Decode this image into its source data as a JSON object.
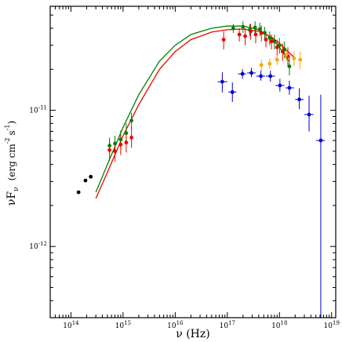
{
  "chart_data": {
    "type": "scatter",
    "title": "",
    "xlabel": "ν (Hz)",
    "ylabel": "νF",
    "ylabel_sub": "ν",
    "ylabel_units": "(erg cm",
    "ylabel_units_exp1": "-2",
    "ylabel_units_s": "s",
    "ylabel_units_exp2": "-1",
    "ylabel_units_close": ")",
    "x_scale": "log",
    "y_scale": "log",
    "xlim": [
      40000000000000.0,
      1.2e+19
    ],
    "ylim": [
      3e-13,
      5.8e-11
    ],
    "grid": false,
    "legend": "none",
    "x_ticks": [
      {
        "value": 100000000000000.0,
        "base": "10",
        "exp": "14"
      },
      {
        "value": 1000000000000000.0,
        "base": "10",
        "exp": "15"
      },
      {
        "value": 1e+16,
        "base": "10",
        "exp": "16"
      },
      {
        "value": 1e+17,
        "base": "10",
        "exp": "17"
      },
      {
        "value": 1e+18,
        "base": "10",
        "exp": "18"
      },
      {
        "value": 1e+19,
        "base": "10",
        "exp": "19"
      }
    ],
    "y_ticks": [
      {
        "value": 1e-12,
        "base": "10",
        "exp": "-12"
      },
      {
        "value": 1e-11,
        "base": "10",
        "exp": "-11"
      }
    ],
    "series": [
      {
        "color": "#000000",
        "kind": "points",
        "points": [
          {
            "x": 140000000000000.0,
            "y": 2.5e-12
          },
          {
            "x": 190000000000000.0,
            "y": 3.05e-12
          },
          {
            "x": 240000000000000.0,
            "y": 3.25e-12
          }
        ]
      },
      {
        "color": "#008000",
        "kind": "points",
        "points": [
          {
            "x": 550000000000000.0,
            "y": 5.5e-12,
            "ylo": 4.8e-12,
            "yhi": 6.3e-12
          },
          {
            "x": 700000000000000.0,
            "y": 5.7e-12,
            "ylo": 5e-12,
            "yhi": 6.5e-12
          },
          {
            "x": 900000000000000.0,
            "y": 6.1e-12,
            "ylo": 5.2e-12,
            "yhi": 7.1e-12
          },
          {
            "x": 1150000000000000.0,
            "y": 6.8e-12,
            "ylo": 5.8e-12,
            "yhi": 8e-12
          },
          {
            "x": 1450000000000000.0,
            "y": 8.4e-12,
            "ylo": 7.2e-12,
            "yhi": 9.6e-12
          },
          {
            "x": 1.3e+17,
            "y": 4e-11,
            "ylo": 3.7e-11,
            "yhi": 4.3e-11
          },
          {
            "x": 2e+17,
            "y": 4.1e-11,
            "ylo": 3.7e-11,
            "yhi": 4.5e-11
          },
          {
            "x": 2.7e+17,
            "y": 3.9e-11,
            "ylo": 3.5e-11,
            "yhi": 4.3e-11
          },
          {
            "x": 3.4e+17,
            "y": 4.05e-11,
            "ylo": 3.6e-11,
            "yhi": 4.5e-11
          },
          {
            "x": 4.2e+17,
            "y": 3.95e-11,
            "ylo": 3.5e-11,
            "yhi": 4.4e-11
          },
          {
            "x": 5.2e+17,
            "y": 3.7e-11,
            "ylo": 3.3e-11,
            "yhi": 4.1e-11
          },
          {
            "x": 6.5e+17,
            "y": 3.4e-11,
            "ylo": 3e-11,
            "yhi": 3.8e-11
          },
          {
            "x": 8e+17,
            "y": 3.2e-11,
            "ylo": 2.8e-11,
            "yhi": 3.6e-11
          },
          {
            "x": 1e+18,
            "y": 3e-11,
            "ylo": 2.6e-11,
            "yhi": 3.4e-11
          },
          {
            "x": 1.25e+18,
            "y": 2.8e-11,
            "ylo": 2.4e-11,
            "yhi": 3.2e-11
          },
          {
            "x": 1.55e+18,
            "y": 2.1e-11,
            "ylo": 1.8e-11,
            "yhi": 2.5e-11
          }
        ]
      },
      {
        "color": "#ee0000",
        "kind": "points",
        "points": [
          {
            "x": 550000000000000.0,
            "y": 5.1e-12,
            "ylo": 4.3e-12,
            "yhi": 6e-12
          },
          {
            "x": 700000000000000.0,
            "y": 5e-12,
            "ylo": 4.2e-12,
            "yhi": 5.9e-12
          },
          {
            "x": 900000000000000.0,
            "y": 5.6e-12,
            "ylo": 4.7e-12,
            "yhi": 6.6e-12
          },
          {
            "x": 1150000000000000.0,
            "y": 5.8e-12,
            "ylo": 4.9e-12,
            "yhi": 6.8e-12
          },
          {
            "x": 1450000000000000.0,
            "y": 6.3e-12,
            "ylo": 5.3e-12,
            "yhi": 7.5e-12
          },
          {
            "x": 8.5e+16,
            "y": 3.3e-11,
            "ylo": 2.8e-11,
            "yhi": 3.8e-11
          },
          {
            "x": 1.7e+17,
            "y": 3.6e-11,
            "ylo": 3.2e-11,
            "yhi": 4e-11
          },
          {
            "x": 2.2e+17,
            "y": 3.5e-11,
            "ylo": 3e-11,
            "yhi": 4e-11
          },
          {
            "x": 2.8e+17,
            "y": 3.8e-11,
            "ylo": 3.3e-11,
            "yhi": 4.3e-11
          },
          {
            "x": 3.5e+17,
            "y": 3.6e-11,
            "ylo": 3.1e-11,
            "yhi": 4.1e-11
          },
          {
            "x": 4.5e+17,
            "y": 3.7e-11,
            "ylo": 3.2e-11,
            "yhi": 4.2e-11
          },
          {
            "x": 5.5e+17,
            "y": 3.3e-11,
            "ylo": 2.9e-11,
            "yhi": 3.8e-11
          },
          {
            "x": 7e+17,
            "y": 3.2e-11,
            "ylo": 2.8e-11,
            "yhi": 3.6e-11
          },
          {
            "x": 9e+17,
            "y": 2.9e-11,
            "ylo": 2.5e-11,
            "yhi": 3.3e-11
          },
          {
            "x": 1.15e+18,
            "y": 2.7e-11,
            "ylo": 2.3e-11,
            "yhi": 3.1e-11
          },
          {
            "x": 1.45e+18,
            "y": 2.5e-11,
            "ylo": 2.1e-11,
            "yhi": 2.9e-11
          }
        ]
      },
      {
        "color": "#ffa500",
        "kind": "points",
        "points": [
          {
            "x": 4.5e+17,
            "y": 2.15e-11,
            "ylo": 1.95e-11,
            "yhi": 2.35e-11
          },
          {
            "x": 6.5e+17,
            "y": 2.2e-11,
            "ylo": 2e-11,
            "yhi": 2.4e-11
          },
          {
            "x": 9e+17,
            "y": 2.35e-11,
            "ylo": 2.15e-11,
            "yhi": 2.55e-11
          },
          {
            "x": 1.35e+18,
            "y": 2.55e-11,
            "ylo": 2.3e-11,
            "yhi": 2.8e-11
          },
          {
            "x": 1.9e+18,
            "y": 2.4e-11,
            "ylo": 2.1e-11,
            "yhi": 2.7e-11
          },
          {
            "x": 2.5e+18,
            "y": 2.35e-11,
            "ylo": 2e-11,
            "yhi": 2.7e-11
          }
        ]
      },
      {
        "color": "#0000cc",
        "kind": "points",
        "points": [
          {
            "x": 8e+16,
            "y": 1.62e-11,
            "ylo": 1.35e-11,
            "yhi": 1.9e-11,
            "xlo": 6.5e+16,
            "xhi": 1e+17
          },
          {
            "x": 1.25e+17,
            "y": 1.36e-11,
            "ylo": 1.15e-11,
            "yhi": 1.6e-11,
            "xlo": 1.05e+17,
            "xhi": 1.5e+17
          },
          {
            "x": 1.95e+17,
            "y": 1.85e-11,
            "ylo": 1.7e-11,
            "yhi": 2e-11,
            "xlo": 1.6e+17,
            "xhi": 2.3e+17
          },
          {
            "x": 2.9e+17,
            "y": 1.88e-11,
            "ylo": 1.75e-11,
            "yhi": 2.05e-11,
            "xlo": 2.4e+17,
            "xhi": 3.5e+17
          },
          {
            "x": 4.4e+17,
            "y": 1.78e-11,
            "ylo": 1.65e-11,
            "yhi": 1.95e-11,
            "xlo": 3.6e+17,
            "xhi": 5.3e+17
          },
          {
            "x": 6.7e+17,
            "y": 1.78e-11,
            "ylo": 1.62e-11,
            "yhi": 1.95e-11,
            "xlo": 5.5e+17,
            "xhi": 8.2e+17
          },
          {
            "x": 1.02e+18,
            "y": 1.52e-11,
            "ylo": 1.37e-11,
            "yhi": 1.7e-11,
            "xlo": 8.4e+17,
            "xhi": 1.25e+18
          },
          {
            "x": 1.55e+18,
            "y": 1.46e-11,
            "ylo": 1.3e-11,
            "yhi": 1.65e-11,
            "xlo": 1.3e+18,
            "xhi": 1.9e+18
          },
          {
            "x": 2.4e+18,
            "y": 1.2e-11,
            "ylo": 1.02e-11,
            "yhi": 1.45e-11,
            "xlo": 2e+18,
            "xhi": 2.9e+18
          },
          {
            "x": 3.7e+18,
            "y": 9.3e-12,
            "ylo": 7e-12,
            "yhi": 1.28e-11,
            "xlo": 3e+18,
            "xhi": 4.5e+18
          },
          {
            "x": 6.2e+18,
            "y": 6e-12,
            "ylo": 3e-13,
            "yhi": 1.3e-11,
            "xlo": 5e+18,
            "xhi": 7.5e+18
          }
        ]
      },
      {
        "color": "#008000",
        "kind": "curve",
        "points": [
          {
            "x": 300000000000000.0,
            "y": 2.5e-12
          },
          {
            "x": 500000000000000.0,
            "y": 4e-12
          },
          {
            "x": 1000000000000000.0,
            "y": 7.5e-12
          },
          {
            "x": 2000000000000000.0,
            "y": 1.3e-11
          },
          {
            "x": 5000000000000000.0,
            "y": 2.3e-11
          },
          {
            "x": 1e+16,
            "y": 3e-11
          },
          {
            "x": 2e+16,
            "y": 3.6e-11
          },
          {
            "x": 5e+16,
            "y": 4e-11
          },
          {
            "x": 1e+17,
            "y": 4.15e-11
          },
          {
            "x": 2e+17,
            "y": 4.15e-11
          },
          {
            "x": 4e+17,
            "y": 3.9e-11
          },
          {
            "x": 7e+17,
            "y": 3.4e-11
          },
          {
            "x": 1e+18,
            "y": 2.9e-11
          },
          {
            "x": 1.5e+18,
            "y": 2.3e-11
          }
        ]
      },
      {
        "color": "#ee0000",
        "kind": "curve",
        "points": [
          {
            "x": 300000000000000.0,
            "y": 2.25e-12
          },
          {
            "x": 500000000000000.0,
            "y": 3.5e-12
          },
          {
            "x": 1000000000000000.0,
            "y": 6.5e-12
          },
          {
            "x": 2000000000000000.0,
            "y": 1.1e-11
          },
          {
            "x": 5000000000000000.0,
            "y": 2e-11
          },
          {
            "x": 1e+16,
            "y": 2.7e-11
          },
          {
            "x": 2e+16,
            "y": 3.3e-11
          },
          {
            "x": 5e+16,
            "y": 3.75e-11
          },
          {
            "x": 1e+17,
            "y": 3.9e-11
          },
          {
            "x": 2e+17,
            "y": 3.95e-11
          },
          {
            "x": 4e+17,
            "y": 3.8e-11
          },
          {
            "x": 7e+17,
            "y": 3.45e-11
          },
          {
            "x": 1e+18,
            "y": 3.1e-11
          },
          {
            "x": 2e+18,
            "y": 2.4e-11
          }
        ]
      }
    ]
  }
}
